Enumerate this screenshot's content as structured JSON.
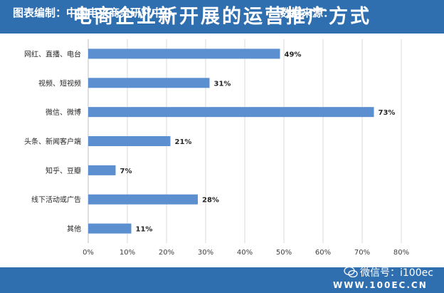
{
  "header": {
    "title": "电商企业新开展的运营推广方式"
  },
  "footer": {
    "left": "图表编制：中国电子商务研究中心",
    "right": "数据来源：",
    "wechat": "微信号：i100ec",
    "website": "WWW.100EC.CN"
  },
  "colors": {
    "bar": "#5b8fd0",
    "banner": "#2f6fb0",
    "grid": "#d9d9d9"
  },
  "chart_data": {
    "type": "bar",
    "orientation": "horizontal",
    "categories": [
      "网红、直播、电台",
      "视频、短视频",
      "微信、微博",
      "头条、新闻客户端",
      "知乎、豆瓣",
      "线下活动或广告",
      "其他"
    ],
    "values": [
      49,
      31,
      73,
      21,
      7,
      28,
      11
    ],
    "value_labels": [
      "49%",
      "31%",
      "73%",
      "21%",
      "7%",
      "28%",
      "11%"
    ],
    "xlim": [
      0,
      80
    ],
    "xticks": [
      "0%",
      "10%",
      "20%",
      "30%",
      "40%",
      "50%",
      "60%",
      "70%",
      "80%"
    ],
    "grid": true,
    "legend": "none"
  }
}
